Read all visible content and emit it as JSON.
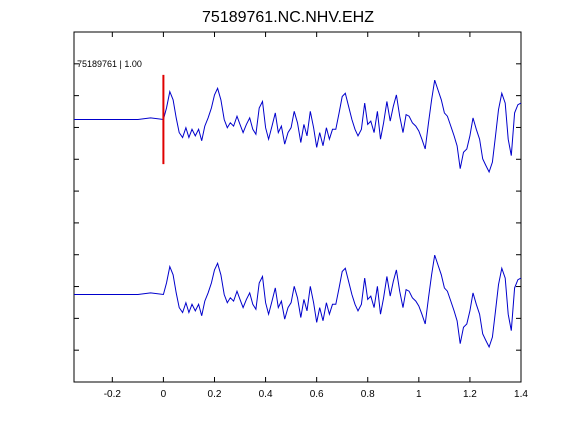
{
  "chart_data": {
    "type": "line",
    "title": "75189761.NC.NHV.EHZ",
    "xlabel": "",
    "ylabel": "",
    "xlim": [
      -0.35,
      1.4
    ],
    "xticks": [
      -0.2,
      0,
      0.2,
      0.4,
      0.6,
      0.8,
      1,
      1.2,
      1.4
    ],
    "xtick_labels": [
      "-0.2",
      "0",
      "0.2",
      "0.4",
      "0.6",
      "0.8",
      "1",
      "1.2",
      "1.4"
    ],
    "y_tick_count": 10,
    "grid": false,
    "annotation": {
      "label": "75189761 | 1.00",
      "pick_time": 0,
      "color": "#e00000"
    },
    "trace_color": "#0000cc",
    "series": [
      {
        "x": [
          -0.35,
          -0.3,
          -0.25,
          -0.2,
          -0.15,
          -0.1,
          -0.05,
          0,
          0.012,
          0.025,
          0.038,
          0.05,
          0.062,
          0.075,
          0.088,
          0.1,
          0.112,
          0.125,
          0.138,
          0.15,
          0.162,
          0.175,
          0.188,
          0.2,
          0.212,
          0.225,
          0.238,
          0.25,
          0.262,
          0.275,
          0.288,
          0.3,
          0.312,
          0.325,
          0.338,
          0.35,
          0.362,
          0.375,
          0.388,
          0.4,
          0.412,
          0.425,
          0.438,
          0.45,
          0.462,
          0.475,
          0.488,
          0.5,
          0.512,
          0.525,
          0.538,
          0.55,
          0.562,
          0.575,
          0.588,
          0.6,
          0.612,
          0.625,
          0.638,
          0.65,
          0.662,
          0.675,
          0.688,
          0.7,
          0.712,
          0.725,
          0.738,
          0.75,
          0.762,
          0.775,
          0.788,
          0.8,
          0.812,
          0.825,
          0.838,
          0.85,
          0.862,
          0.875,
          0.888,
          0.9,
          0.912,
          0.925,
          0.938,
          0.95,
          0.962,
          0.975,
          0.988,
          1,
          1.012,
          1.025,
          1.038,
          1.05,
          1.062,
          1.075,
          1.088,
          1.1,
          1.112,
          1.125,
          1.138,
          1.15,
          1.162,
          1.175,
          1.188,
          1.2,
          1.212,
          1.225,
          1.238,
          1.25,
          1.262,
          1.275,
          1.288,
          1.3,
          1.312,
          1.325,
          1.338,
          1.35,
          1.362,
          1.375,
          1.388,
          1.4
        ],
        "values": [
          0,
          0,
          0,
          0,
          0,
          0,
          0.05,
          0,
          0.35,
          0.85,
          0.6,
          0.05,
          -0.4,
          -0.55,
          -0.25,
          -0.55,
          -0.3,
          -0.5,
          -0.3,
          -0.65,
          -0.2,
          0.05,
          0.35,
          0.75,
          0.95,
          0.6,
          0,
          -0.25,
          -0.1,
          -0.2,
          0.1,
          -0.15,
          -0.4,
          -0.15,
          0.05,
          -0.3,
          -0.45,
          0.35,
          0.55,
          -0.25,
          -0.6,
          -0.2,
          0.2,
          -0.4,
          -0.2,
          -0.75,
          -0.4,
          -0.25,
          0.25,
          -0.1,
          -0.7,
          -0.15,
          -0.5,
          0.25,
          -0.25,
          -0.85,
          -0.4,
          -0.8,
          -0.25,
          -0.6,
          -0.3,
          -0.3,
          0.2,
          0.7,
          0.8,
          0.4,
          0,
          -0.3,
          -0.5,
          -0.3,
          0.5,
          -0.15,
          -0.05,
          -0.4,
          0.25,
          -0.6,
          -0.1,
          0.55,
          -0.05,
          0.4,
          0.75,
          0.1,
          -0.4,
          0.15,
          0.1,
          -0.1,
          -0.2,
          -0.35,
          -0.6,
          -0.9,
          -0.1,
          0.6,
          1.2,
          0.9,
          0.6,
          0.2,
          0.1,
          -0.2,
          -0.5,
          -0.8,
          -1.5,
          -1,
          -0.9,
          -0.5,
          0.05,
          -0.3,
          -0.6,
          -1.2,
          -1.4,
          -1.6,
          -1.3,
          -0.5,
          0.3,
          0.8,
          0.5,
          -0.6,
          -1.1,
          0.2,
          0.45,
          0.5
        ]
      },
      {
        "x": [
          -0.35,
          -0.3,
          -0.25,
          -0.2,
          -0.15,
          -0.1,
          -0.05,
          0,
          0.012,
          0.025,
          0.038,
          0.05,
          0.062,
          0.075,
          0.088,
          0.1,
          0.112,
          0.125,
          0.138,
          0.15,
          0.162,
          0.175,
          0.188,
          0.2,
          0.212,
          0.225,
          0.238,
          0.25,
          0.262,
          0.275,
          0.288,
          0.3,
          0.312,
          0.325,
          0.338,
          0.35,
          0.362,
          0.375,
          0.388,
          0.4,
          0.412,
          0.425,
          0.438,
          0.45,
          0.462,
          0.475,
          0.488,
          0.5,
          0.512,
          0.525,
          0.538,
          0.55,
          0.562,
          0.575,
          0.588,
          0.6,
          0.612,
          0.625,
          0.638,
          0.65,
          0.662,
          0.675,
          0.688,
          0.7,
          0.712,
          0.725,
          0.738,
          0.75,
          0.762,
          0.775,
          0.788,
          0.8,
          0.812,
          0.825,
          0.838,
          0.85,
          0.862,
          0.875,
          0.888,
          0.9,
          0.912,
          0.925,
          0.938,
          0.95,
          0.962,
          0.975,
          0.988,
          1,
          1.012,
          1.025,
          1.038,
          1.05,
          1.062,
          1.075,
          1.088,
          1.1,
          1.112,
          1.125,
          1.138,
          1.15,
          1.162,
          1.175,
          1.188,
          1.2,
          1.212,
          1.225,
          1.238,
          1.25,
          1.262,
          1.275,
          1.288,
          1.3,
          1.312,
          1.325,
          1.338,
          1.35,
          1.362,
          1.375,
          1.388,
          1.4
        ],
        "values": [
          0,
          0,
          0,
          0,
          0,
          0,
          0.05,
          0,
          0.35,
          0.85,
          0.6,
          0.05,
          -0.4,
          -0.55,
          -0.25,
          -0.55,
          -0.3,
          -0.5,
          -0.3,
          -0.65,
          -0.2,
          0.05,
          0.35,
          0.75,
          0.95,
          0.6,
          0,
          -0.25,
          -0.1,
          -0.2,
          0.1,
          -0.15,
          -0.4,
          -0.15,
          0.05,
          -0.3,
          -0.45,
          0.35,
          0.55,
          -0.25,
          -0.6,
          -0.2,
          0.2,
          -0.4,
          -0.2,
          -0.75,
          -0.4,
          -0.25,
          0.25,
          -0.1,
          -0.7,
          -0.15,
          -0.5,
          0.25,
          -0.25,
          -0.85,
          -0.4,
          -0.8,
          -0.25,
          -0.6,
          -0.3,
          -0.3,
          0.2,
          0.7,
          0.8,
          0.4,
          0,
          -0.3,
          -0.5,
          -0.3,
          0.5,
          -0.15,
          -0.05,
          -0.4,
          0.25,
          -0.6,
          -0.1,
          0.55,
          -0.05,
          0.4,
          0.75,
          0.1,
          -0.4,
          0.15,
          0.1,
          -0.1,
          -0.2,
          -0.35,
          -0.6,
          -0.9,
          -0.1,
          0.6,
          1.2,
          0.9,
          0.6,
          0.2,
          0.1,
          -0.2,
          -0.5,
          -0.8,
          -1.5,
          -1,
          -0.9,
          -0.5,
          0.05,
          -0.3,
          -0.6,
          -1.2,
          -1.4,
          -1.6,
          -1.3,
          -0.5,
          0.3,
          0.8,
          0.5,
          -0.6,
          -1.1,
          0.2,
          0.45,
          0.5
        ]
      }
    ]
  }
}
